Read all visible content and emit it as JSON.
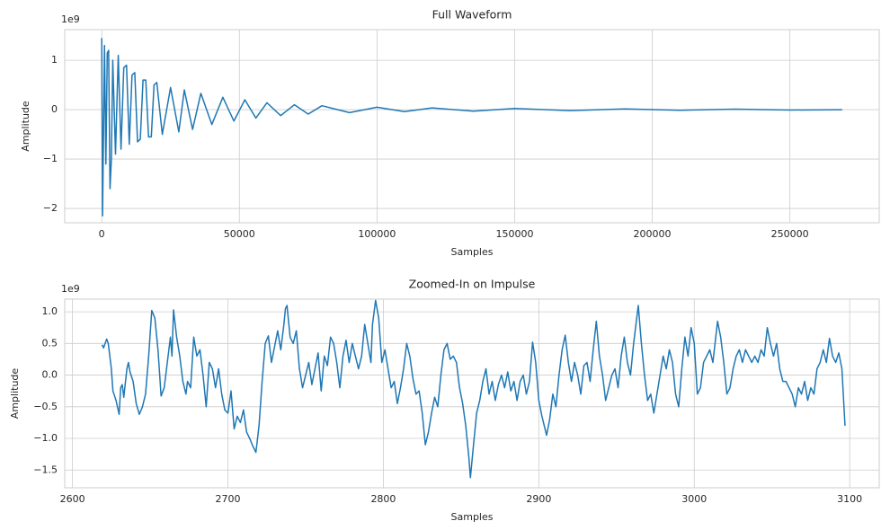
{
  "chart_data": [
    {
      "type": "line",
      "title": "Full Waveform",
      "xlabel": "Samples",
      "ylabel": "Amplitude",
      "offset_label": "1e9",
      "color": "#1f77b4",
      "grid": true,
      "xlim": [
        -13450,
        282450
      ],
      "ylim": [
        -2.29,
        1.62
      ],
      "xticks": [
        0,
        50000,
        100000,
        150000,
        200000,
        250000
      ],
      "yticks": [
        {
          "value": -2,
          "label": "−2"
        },
        {
          "value": -1,
          "label": "−1"
        },
        0,
        1
      ],
      "x": [
        0,
        300,
        1000,
        1500,
        2000,
        2500,
        3000,
        3500,
        4000,
        5000,
        6000,
        7000,
        8000,
        9000,
        10000,
        11000,
        12000,
        13000,
        14000,
        15000,
        16000,
        17000,
        18000,
        19000,
        20000,
        22000,
        25000,
        28000,
        30000,
        33000,
        36000,
        40000,
        44000,
        48000,
        52000,
        56000,
        60000,
        65000,
        70000,
        75000,
        80000,
        90000,
        100000,
        110000,
        120000,
        135000,
        150000,
        170000,
        190000,
        210000,
        230000,
        250000,
        269000
      ],
      "values": [
        1.45,
        -2.15,
        1.3,
        -1.1,
        1.15,
        1.2,
        -1.6,
        -1.0,
        1.0,
        -0.9,
        1.1,
        -0.8,
        0.85,
        0.9,
        -0.7,
        0.7,
        0.75,
        -0.65,
        -0.6,
        0.6,
        0.6,
        -0.55,
        -0.55,
        0.5,
        0.55,
        -0.5,
        0.45,
        -0.45,
        0.4,
        -0.4,
        0.33,
        -0.3,
        0.25,
        -0.23,
        0.2,
        -0.17,
        0.14,
        -0.12,
        0.1,
        -0.09,
        0.08,
        -0.06,
        0.05,
        -0.04,
        0.035,
        -0.03,
        0.025,
        -0.02,
        0.015,
        -0.012,
        0.01,
        -0.008,
        0.0
      ]
    },
    {
      "type": "line",
      "title": "Zoomed-In on Impulse",
      "xlabel": "Samples",
      "ylabel": "Amplitude",
      "offset_label": "1e9",
      "color": "#1f77b4",
      "grid": true,
      "xlim": [
        2595,
        3119
      ],
      "ylim": [
        -1.78,
        1.2
      ],
      "xticks": [
        2600,
        2700,
        2800,
        2900,
        3000,
        3100
      ],
      "yticks": [
        {
          "value": -1.5,
          "label": "−1.5"
        },
        {
          "value": -1.0,
          "label": "−1.0"
        },
        {
          "value": -0.5,
          "label": "−0.5"
        },
        {
          "value": 0.0,
          "label": "0.0"
        },
        0.5,
        {
          "value": 1.0,
          "label": "1.0"
        }
      ],
      "x": [
        2619,
        2620,
        2622,
        2623,
        2625,
        2626,
        2628,
        2630,
        2631,
        2632,
        2633,
        2635,
        2636,
        2637,
        2639,
        2641,
        2643,
        2645,
        2647,
        2649,
        2651,
        2653,
        2655,
        2657,
        2659,
        2661,
        2663,
        2664,
        2665,
        2667,
        2669,
        2671,
        2673,
        2674,
        2676,
        2678,
        2680,
        2682,
        2684,
        2686,
        2688,
        2690,
        2692,
        2694,
        2696,
        2698,
        2700,
        2702,
        2704,
        2706,
        2708,
        2710,
        2712,
        2714,
        2716,
        2718,
        2720,
        2722,
        2724,
        2726,
        2728,
        2730,
        2732,
        2734,
        2736,
        2737,
        2738,
        2740,
        2742,
        2744,
        2746,
        2748,
        2750,
        2752,
        2754,
        2756,
        2758,
        2760,
        2762,
        2764,
        2766,
        2768,
        2770,
        2772,
        2774,
        2776,
        2778,
        2780,
        2782,
        2784,
        2786,
        2788,
        2790,
        2792,
        2793,
        2795,
        2797,
        2799,
        2801,
        2803,
        2805,
        2807,
        2809,
        2811,
        2813,
        2815,
        2817,
        2819,
        2821,
        2823,
        2825,
        2827,
        2829,
        2831,
        2833,
        2835,
        2837,
        2839,
        2841,
        2843,
        2845,
        2847,
        2849,
        2851,
        2853,
        2855,
        2856,
        2858,
        2860,
        2862,
        2864,
        2866,
        2868,
        2870,
        2872,
        2874,
        2876,
        2878,
        2880,
        2882,
        2884,
        2886,
        2888,
        2890,
        2892,
        2894,
        2896,
        2898,
        2900,
        2902,
        2904,
        2905,
        2907,
        2909,
        2911,
        2913,
        2915,
        2917,
        2919,
        2921,
        2923,
        2925,
        2927,
        2929,
        2931,
        2933,
        2935,
        2937,
        2939,
        2941,
        2943,
        2945,
        2947,
        2949,
        2951,
        2953,
        2955,
        2957,
        2959,
        2961,
        2963,
        2964,
        2966,
        2968,
        2970,
        2972,
        2974,
        2976,
        2978,
        2980,
        2982,
        2984,
        2986,
        2988,
        2990,
        2992,
        2994,
        2996,
        2998,
        3000,
        3002,
        3004,
        3006,
        3008,
        3010,
        3012,
        3015,
        3017,
        3019,
        3021,
        3023,
        3025,
        3027,
        3029,
        3031,
        3033,
        3035,
        3037,
        3039,
        3041,
        3043,
        3045,
        3047,
        3049,
        3051,
        3053,
        3055,
        3057,
        3059,
        3061,
        3063,
        3065,
        3067,
        3069,
        3071,
        3073,
        3075,
        3077,
        3079,
        3081,
        3083,
        3085,
        3087,
        3089,
        3091,
        3093,
        3095,
        3097
      ],
      "values": [
        0.48,
        0.43,
        0.57,
        0.5,
        0.1,
        -0.25,
        -0.4,
        -0.62,
        -0.2,
        -0.15,
        -0.35,
        0.1,
        0.2,
        0.05,
        -0.1,
        -0.45,
        -0.62,
        -0.5,
        -0.3,
        0.3,
        1.02,
        0.9,
        0.4,
        -0.33,
        -0.2,
        0.2,
        0.6,
        0.3,
        1.03,
        0.6,
        0.3,
        -0.1,
        -0.3,
        -0.1,
        -0.2,
        0.6,
        0.3,
        0.4,
        0,
        -0.5,
        0.2,
        0.1,
        -0.2,
        0.1,
        -0.3,
        -0.55,
        -0.6,
        -0.25,
        -0.85,
        -0.65,
        -0.75,
        -0.55,
        -0.9,
        -1.0,
        -1.12,
        -1.22,
        -0.8,
        -0.1,
        0.5,
        0.62,
        0.2,
        0.45,
        0.7,
        0.4,
        0.8,
        1.05,
        1.1,
        0.6,
        0.5,
        0.7,
        0.1,
        -0.2,
        0.0,
        0.2,
        -0.15,
        0.1,
        0.35,
        -0.25,
        0.3,
        0.15,
        0.6,
        0.5,
        0.2,
        -0.2,
        0.3,
        0.55,
        0.2,
        0.5,
        0.3,
        0.1,
        0.3,
        0.8,
        0.5,
        0.2,
        0.8,
        1.18,
        0.9,
        0.2,
        0.4,
        0.1,
        -0.2,
        -0.1,
        -0.45,
        -0.2,
        0.1,
        0.5,
        0.3,
        -0.05,
        -0.3,
        -0.25,
        -0.6,
        -1.1,
        -0.9,
        -0.6,
        -0.35,
        -0.5,
        0.0,
        0.4,
        0.5,
        0.25,
        0.3,
        0.2,
        -0.2,
        -0.45,
        -0.8,
        -1.3,
        -1.62,
        -1.1,
        -0.6,
        -0.4,
        -0.1,
        0.1,
        -0.3,
        -0.1,
        -0.4,
        -0.15,
        0,
        -0.2,
        0.05,
        -0.25,
        -0.1,
        -0.4,
        -0.1,
        0,
        -0.3,
        -0.1,
        0.52,
        0.2,
        -0.4,
        -0.65,
        -0.85,
        -0.95,
        -0.7,
        -0.3,
        -0.5,
        0.0,
        0.4,
        0.63,
        0.2,
        -0.1,
        0.2,
        0.0,
        -0.3,
        0.15,
        0.2,
        -0.1,
        0.4,
        0.85,
        0.3,
        0.0,
        -0.4,
        -0.2,
        0.0,
        0.1,
        -0.2,
        0.3,
        0.6,
        0.2,
        0.0,
        0.5,
        0.9,
        1.1,
        0.5,
        0.0,
        -0.4,
        -0.3,
        -0.6,
        -0.3,
        0,
        0.3,
        0.1,
        0.4,
        0.2,
        -0.3,
        -0.5,
        0.1,
        0.6,
        0.3,
        0.75,
        0.5,
        -0.3,
        -0.2,
        0.2,
        0.3,
        0.4,
        0.2,
        0.85,
        0.6,
        0.2,
        -0.3,
        -0.2,
        0.1,
        0.3,
        0.4,
        0.2,
        0.4,
        0.3,
        0.2,
        0.3,
        0.2,
        0.4,
        0.3,
        0.75,
        0.5,
        0.3,
        0.5,
        0.1,
        -0.1,
        -0.1,
        -0.2,
        -0.3,
        -0.5,
        -0.2,
        -0.3,
        -0.1,
        -0.4,
        -0.2,
        -0.3,
        0.1,
        0.2,
        0.4,
        0.2,
        0.58,
        0.3,
        0.2,
        0.35,
        0.1,
        -0.8
      ]
    }
  ]
}
